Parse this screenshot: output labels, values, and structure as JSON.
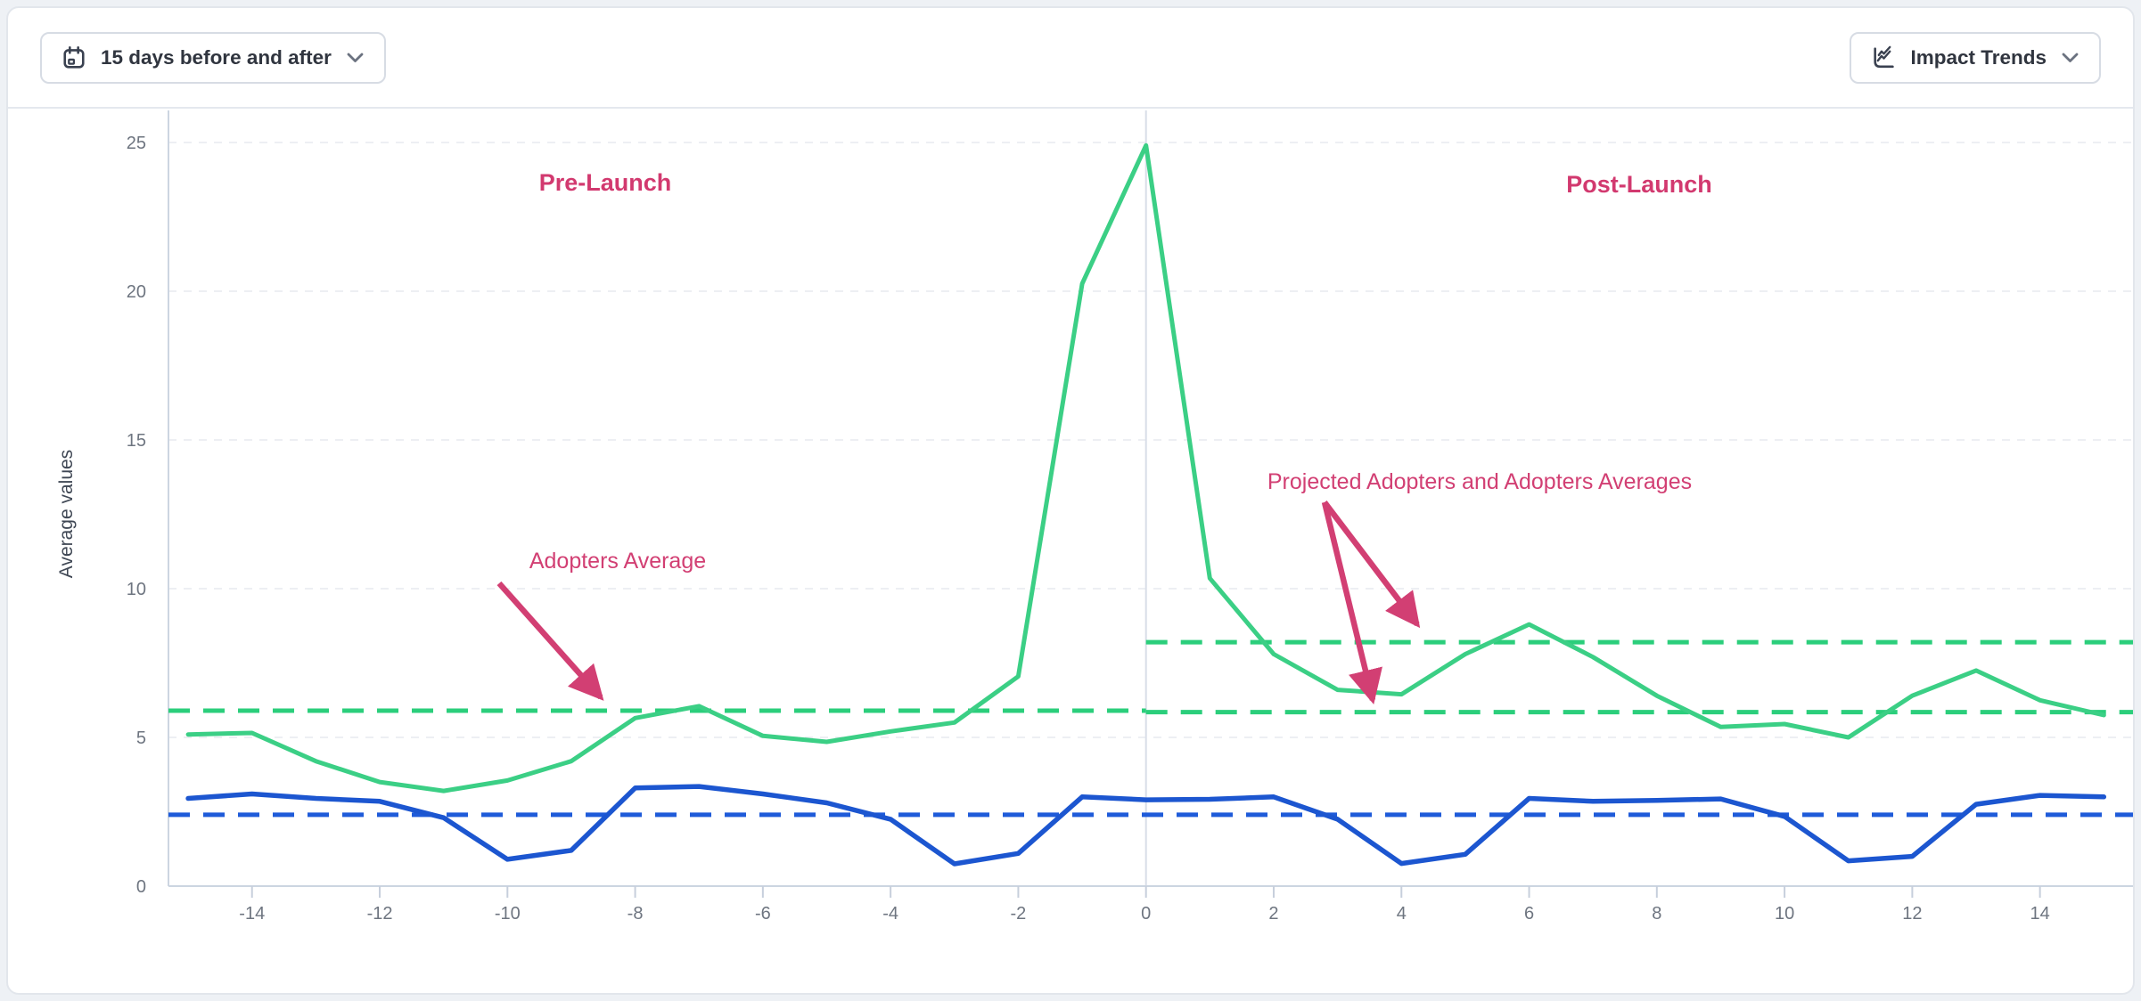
{
  "toolbar": {
    "date_range_button": {
      "label": "15 days before and after",
      "icon": "calendar-icon"
    },
    "chart_type_button": {
      "label": "Impact Trends",
      "icon": "line-chart-icon"
    }
  },
  "chart_data": {
    "type": "line",
    "title": "",
    "xlabel": "",
    "ylabel": "Average values",
    "xlim": [
      -15.32,
      15.48
    ],
    "ylim": [
      0,
      26.1
    ],
    "x_ticks": [
      -14,
      -12,
      -10,
      -8,
      -6,
      -4,
      -2,
      0,
      2,
      4,
      6,
      8,
      10,
      12,
      14
    ],
    "y_ticks": [
      0,
      5,
      10,
      15,
      20,
      25
    ],
    "grid": "horizontal-dashed",
    "launch_line_x": 0,
    "x": [
      -15,
      -14,
      -13,
      -12,
      -11,
      -10,
      -9,
      -8,
      -7,
      -6,
      -5,
      -4,
      -3,
      -2,
      -1,
      0,
      1,
      2,
      3,
      4,
      5,
      6,
      7,
      8,
      9,
      10,
      11,
      12,
      13,
      14,
      15
    ],
    "series": [
      {
        "id": "adopters",
        "name": "Adopters",
        "color": "#3BCF85",
        "style": "solid",
        "values": [
          5.1,
          5.15,
          4.2,
          3.5,
          3.2,
          3.55,
          4.2,
          5.65,
          6.05,
          5.05,
          4.85,
          5.2,
          5.5,
          7.05,
          20.25,
          24.9,
          10.35,
          7.8,
          6.6,
          6.45,
          7.8,
          8.8,
          7.7,
          6.4,
          5.35,
          5.45,
          5.0,
          6.4,
          7.25,
          6.25,
          5.75
        ]
      },
      {
        "id": "secondary",
        "name": "",
        "color": "#1C56D0",
        "style": "solid",
        "values": [
          2.95,
          3.1,
          2.95,
          2.85,
          2.3,
          0.9,
          1.2,
          3.3,
          3.35,
          3.1,
          2.8,
          2.25,
          0.75,
          1.1,
          3.0,
          2.9,
          2.92,
          3.0,
          2.25,
          0.76,
          1.07,
          2.95,
          2.85,
          2.88,
          2.93,
          2.34,
          0.85,
          1.0,
          2.75,
          3.05,
          3.0
        ]
      }
    ],
    "reference_lines": [
      {
        "id": "adopters-average-pre",
        "value": 5.9,
        "from": -15.32,
        "to": 0,
        "color": "#2BCE7B",
        "style": "dashed"
      },
      {
        "id": "projected-adopters-average",
        "value": 5.85,
        "from": 0,
        "to": 15.48,
        "color": "#2BCE7B",
        "style": "dashed"
      },
      {
        "id": "adopters-average-post",
        "value": 8.2,
        "from": 0,
        "to": 15.48,
        "color": "#2BCE7B",
        "style": "dashed"
      },
      {
        "id": "secondary-average",
        "value": 2.4,
        "from": -15.32,
        "to": 15.48,
        "color": "#1E5BD9",
        "style": "dashed"
      }
    ],
    "annotations": [
      {
        "id": "pre-launch-label",
        "text": "Pre-Launch",
        "bold": true
      },
      {
        "id": "post-launch-label",
        "text": "Post-Launch",
        "bold": true
      },
      {
        "id": "adopters-average-label",
        "text": "Adopters Average",
        "bold": false
      },
      {
        "id": "projected-averages-label",
        "text": "Projected Adopters and Adopters Averages",
        "bold": false
      }
    ]
  },
  "colors": {
    "annotation_pink": "#D23F73",
    "section_label_pink": "#D2396F",
    "adopters_green": "#3BCF85",
    "adopters_green_dashed": "#2BCE7B",
    "secondary_blue": "#1C56D0",
    "secondary_blue_dashed": "#1E5BD9",
    "axis_line": "#CCD5E1",
    "gridline": "#E7EAEF",
    "tick_text": "#6E7580",
    "axis_title": "#3F4754"
  }
}
